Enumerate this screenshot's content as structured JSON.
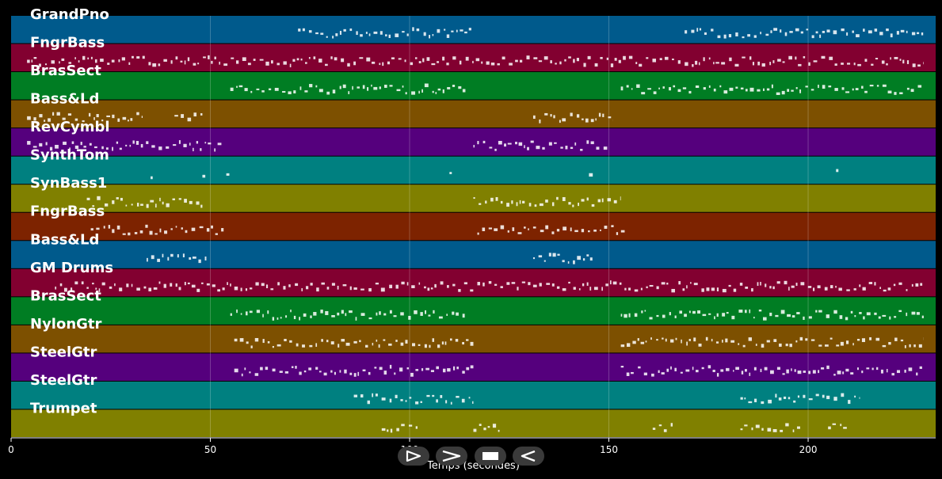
{
  "chart_data": {
    "type": "piano-roll",
    "xlabel": "Temps (secondes)",
    "xlim": [
      0,
      232
    ],
    "xticks": [
      0,
      50,
      100,
      150,
      200
    ],
    "grid": true,
    "tracks": [
      {
        "name": "GrandPno",
        "color": "#005a8c",
        "segments": [
          [
            72,
            116
          ],
          [
            169,
            229
          ]
        ]
      },
      {
        "name": "FngrBass",
        "color": "#820030",
        "segments": [
          [
            4,
            229
          ]
        ]
      },
      {
        "name": "BrasSect",
        "color": "#007d23",
        "segments": [
          [
            55,
            114
          ],
          [
            153,
            229
          ]
        ]
      },
      {
        "name": "Bass&Ld",
        "color": "#7d5000",
        "segments": [
          [
            4,
            33
          ],
          [
            41,
            48
          ],
          [
            131,
            151
          ]
        ]
      },
      {
        "name": "RevCymbl",
        "color": "#55007d",
        "segments": [
          [
            4,
            53
          ],
          [
            116,
            150
          ]
        ]
      },
      {
        "name": "SynthTom",
        "color": "#008080",
        "segments": [
          [
            35,
            36
          ],
          [
            48,
            49
          ],
          [
            54,
            55
          ],
          [
            110,
            111
          ],
          [
            145,
            146
          ],
          [
            207,
            208
          ]
        ]
      },
      {
        "name": "SynBass1",
        "color": "#808000",
        "segments": [
          [
            19,
            48
          ],
          [
            116,
            153
          ]
        ]
      },
      {
        "name": "FngrBass",
        "color": "#7d2300",
        "segments": [
          [
            20,
            54
          ],
          [
            117,
            154
          ]
        ]
      },
      {
        "name": "Bass&Ld",
        "color": "#005a8c",
        "segments": [
          [
            34,
            49
          ],
          [
            131,
            146
          ]
        ]
      },
      {
        "name": "GM Drums",
        "color": "#820030",
        "segments": [
          [
            11,
            229
          ]
        ]
      },
      {
        "name": "BrasSect",
        "color": "#007d23",
        "segments": [
          [
            55,
            114
          ],
          [
            153,
            229
          ]
        ]
      },
      {
        "name": "NylonGtr",
        "color": "#7d5000",
        "segments": [
          [
            56,
            116
          ],
          [
            153,
            229
          ]
        ]
      },
      {
        "name": "SteelGtr",
        "color": "#55007d",
        "segments": [
          [
            56,
            116
          ],
          [
            153,
            229
          ]
        ]
      },
      {
        "name": "SteelGtr",
        "color": "#008080",
        "segments": [
          [
            86,
            116
          ],
          [
            183,
            213
          ]
        ]
      },
      {
        "name": "Trumpet",
        "color": "#808000",
        "segments": [
          [
            93,
            102
          ],
          [
            116,
            123
          ],
          [
            161,
            166
          ],
          [
            183,
            198
          ],
          [
            205,
            210
          ]
        ]
      }
    ]
  },
  "controls": [
    {
      "name": "play-button",
      "icon": "play-icon"
    },
    {
      "name": "forward-button",
      "icon": "forward-icon"
    },
    {
      "name": "stop-button",
      "icon": "stop-icon"
    },
    {
      "name": "rewind-button",
      "icon": "rewind-icon"
    }
  ]
}
